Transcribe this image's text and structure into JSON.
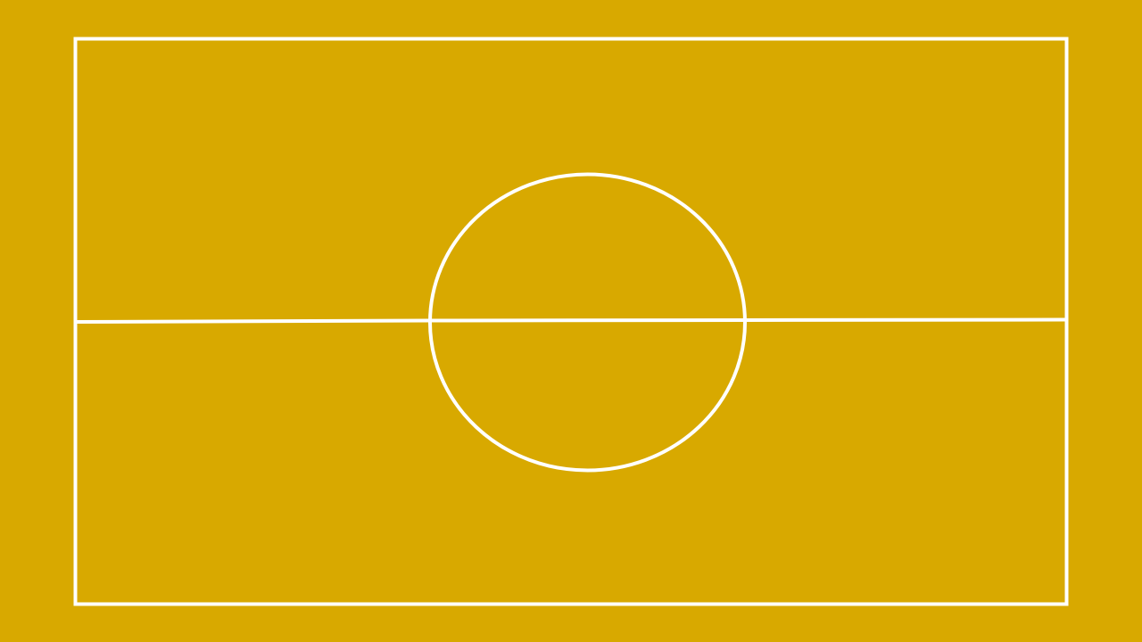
{
  "court": {
    "surface_color": "#D8A900",
    "line_color": "#FFFFFF",
    "elements": [
      "court-boundary",
      "halfway-line",
      "center-circle"
    ]
  }
}
